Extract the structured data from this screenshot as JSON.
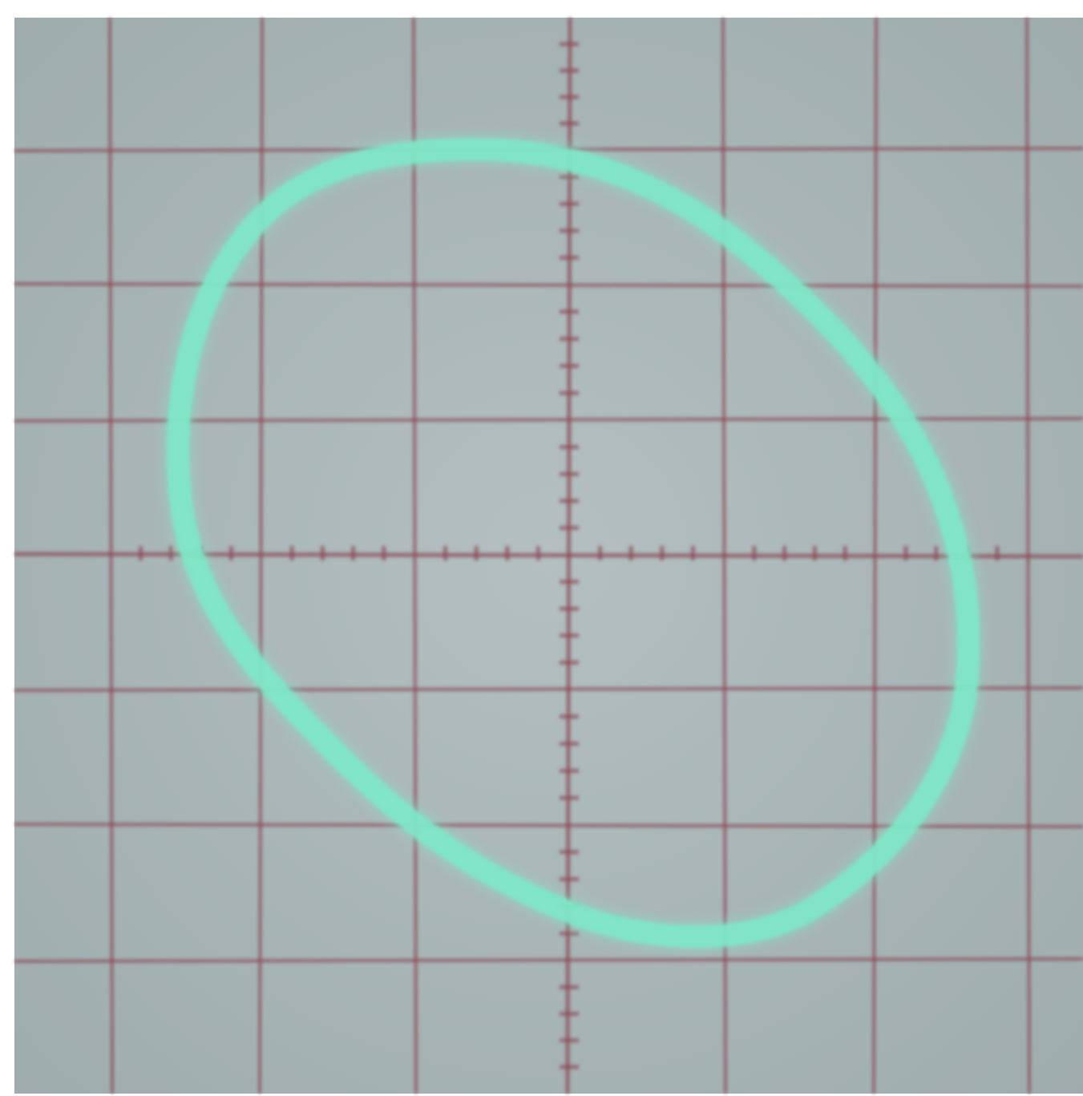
{
  "screen": {
    "background_color": "#a9b6b8",
    "frame_color": "#ffffff",
    "grid_color": "#8a4a56",
    "trace_color": "#7ee8c8"
  },
  "graticule": {
    "major_divisions_x": 7,
    "major_divisions_y": 8,
    "minor_ticks_per_division": 5
  },
  "trace": {
    "shape": "distorted-ellipse",
    "x_extent_divisions": [
      -2.5,
      2.6
    ],
    "y_extent_divisions": [
      -2.8,
      3.0
    ]
  }
}
